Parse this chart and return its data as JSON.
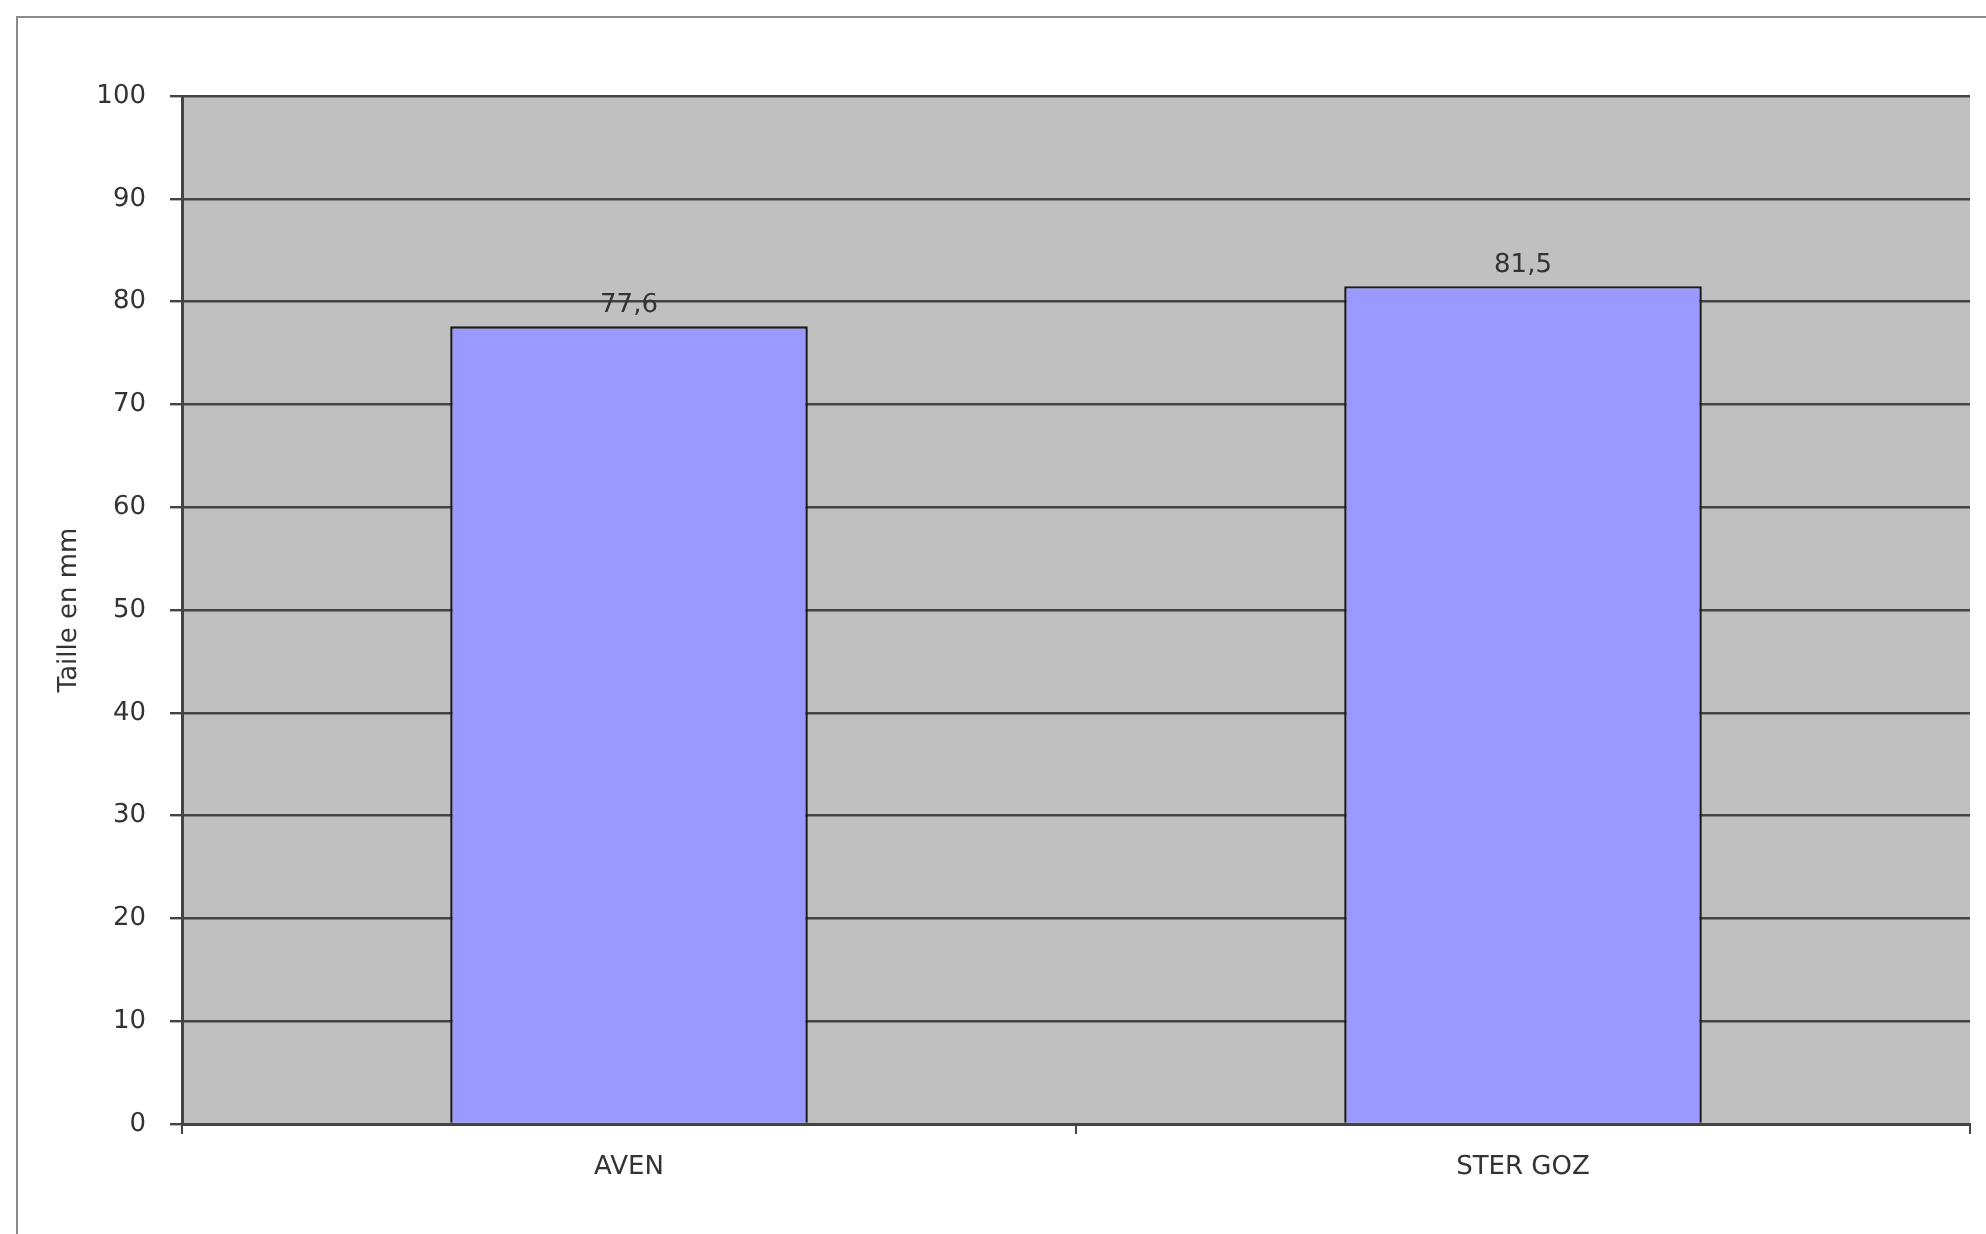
{
  "chart_data": {
    "type": "bar",
    "ylabel": "Taille en mm",
    "categories": [
      "AVEN",
      "STER GOZ"
    ],
    "values": [
      77.6,
      81.5
    ],
    "color": "#9999ff",
    "value_labels": [
      "77,6",
      "81,5"
    ],
    "ylim": [
      0,
      100
    ],
    "yticks": [
      0,
      10,
      20,
      30,
      40,
      50,
      60,
      70,
      80,
      90,
      100
    ],
    "grid": "y"
  }
}
